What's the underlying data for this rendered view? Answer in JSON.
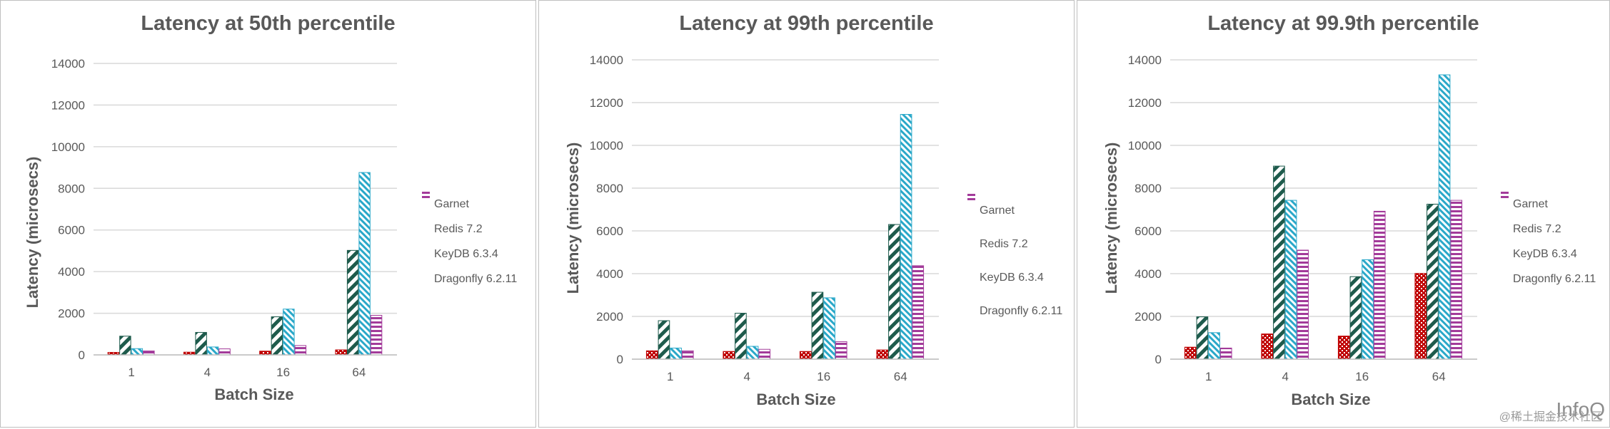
{
  "series_styles": [
    {
      "name": "Garnet",
      "color": "#c00000",
      "pattern": "dots"
    },
    {
      "name": "Redis 7.2",
      "color": "#1e5b4c",
      "pattern": "diag-down"
    },
    {
      "name": "KeyDB 6.3.4",
      "color": "#2aa8c9",
      "pattern": "diag-up"
    },
    {
      "name": "Dragonfly 6.2.11",
      "color": "#a33b9a",
      "pattern": "horizontal"
    }
  ],
  "chart_data": [
    {
      "type": "bar",
      "title": "Latency at 50th percentile",
      "xlabel": "Batch Size",
      "ylabel": "Latency (microsecs)",
      "categories": [
        "1",
        "4",
        "16",
        "64"
      ],
      "ylim": [
        0,
        14000
      ],
      "yticks": [
        "0",
        "2000",
        "4000",
        "6000",
        "8000",
        "10000",
        "12000",
        "14000"
      ],
      "grid": true,
      "legend": "right",
      "series": [
        {
          "name": "Garnet",
          "values": [
            120,
            130,
            180,
            240
          ]
        },
        {
          "name": "Redis 7.2",
          "values": [
            900,
            1080,
            1830,
            5020
          ]
        },
        {
          "name": "KeyDB 6.3.4",
          "values": [
            300,
            380,
            2200,
            8760
          ]
        },
        {
          "name": "Dragonfly 6.2.11",
          "values": [
            190,
            290,
            450,
            1900
          ]
        }
      ]
    },
    {
      "type": "bar",
      "title": "Latency at 99th percentile",
      "xlabel": "Batch Size",
      "ylabel": "Latency (microsecs)",
      "categories": [
        "1",
        "4",
        "16",
        "64"
      ],
      "ylim": [
        0,
        14000
      ],
      "yticks": [
        "0",
        "2000",
        "4000",
        "6000",
        "8000",
        "10000",
        "12000",
        "14000"
      ],
      "grid": true,
      "legend": "right",
      "series": [
        {
          "name": "Garnet",
          "values": [
            390,
            360,
            360,
            430
          ]
        },
        {
          "name": "Redis 7.2",
          "values": [
            1800,
            2150,
            3130,
            6300
          ]
        },
        {
          "name": "KeyDB 6.3.4",
          "values": [
            520,
            600,
            2870,
            11450
          ]
        },
        {
          "name": "Dragonfly 6.2.11",
          "values": [
            390,
            460,
            820,
            4370
          ]
        }
      ]
    },
    {
      "type": "bar",
      "title": "Latency at 99.9th percentile",
      "xlabel": "Batch Size",
      "ylabel": "Latency (microsecs)",
      "categories": [
        "1",
        "4",
        "16",
        "64"
      ],
      "ylim": [
        0,
        14000
      ],
      "yticks": [
        "0",
        "2000",
        "4000",
        "6000",
        "8000",
        "10000",
        "12000",
        "14000"
      ],
      "grid": true,
      "legend": "right",
      "series": [
        {
          "name": "Garnet",
          "values": [
            560,
            1180,
            1080,
            4010
          ]
        },
        {
          "name": "Redis 7.2",
          "values": [
            1980,
            9030,
            3860,
            7250
          ]
        },
        {
          "name": "KeyDB 6.3.4",
          "values": [
            1240,
            7430,
            4650,
            13300
          ]
        },
        {
          "name": "Dragonfly 6.2.11",
          "values": [
            520,
            5100,
            6920,
            7430
          ]
        }
      ]
    }
  ],
  "watermark": {
    "small": "@稀土掘金技术社区",
    "big": "InfoQ"
  }
}
